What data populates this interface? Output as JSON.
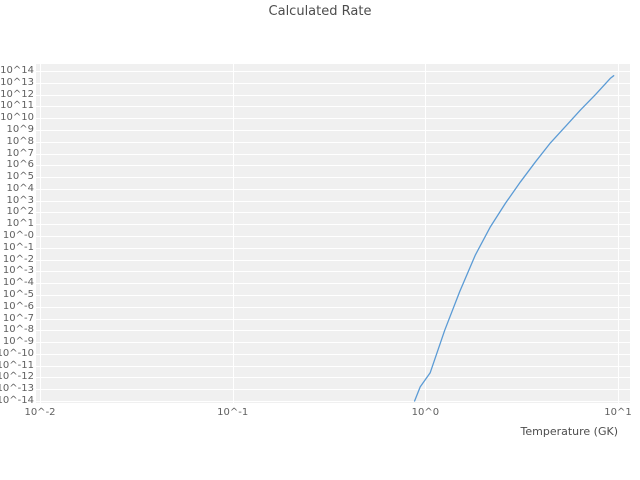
{
  "title": "Calculated Rate",
  "x_axis": {
    "label": "Temperature (GK)",
    "tick_labels": [
      "10^-2",
      "10^-1",
      "10^0",
      "10^1"
    ],
    "tick_exponents": [
      -2,
      -1,
      0,
      1
    ]
  },
  "y_axis": {
    "tick_labels": [
      "10^14",
      "10^13",
      "10^12",
      "10^11",
      "10^10",
      "10^9",
      "10^8",
      "10^7",
      "10^6",
      "10^5",
      "10^4",
      "10^3",
      "10^2",
      "10^1",
      "10^-0",
      "10^-1",
      "10^-2",
      "10^-3",
      "10^-4",
      "10^-5",
      "10^-6",
      "10^-7",
      "10^-8",
      "10^-9",
      "10^-10",
      "10^-11",
      "10^-12",
      "10^-13",
      "10^-14"
    ],
    "tick_exponents": [
      14,
      13,
      12,
      11,
      10,
      9,
      8,
      7,
      6,
      5,
      4,
      3,
      2,
      1,
      0,
      -1,
      -2,
      -3,
      -4,
      -5,
      -6,
      -7,
      -8,
      -9,
      -10,
      -11,
      -12,
      -13,
      -14
    ]
  },
  "chart_data": {
    "type": "line",
    "title": "Calculated Rate",
    "xlabel": "Temperature (GK)",
    "ylabel": "",
    "x_scale": "log",
    "y_scale": "log",
    "x_range_log10": [
      -2,
      1
    ],
    "y_range_log10": [
      -14,
      14
    ],
    "grid": true,
    "legend_position": "none",
    "plot_background": "#f0f0f0",
    "grid_color": "#ffffff",
    "series": [
      {
        "name": "Calculated Rate",
        "color": "#5b9bd5",
        "x_temperature_gk": [
          0.88,
          0.94,
          1.06,
          1.26,
          1.51,
          1.82,
          2.18,
          2.61,
          3.12,
          3.73,
          4.46,
          5.34,
          6.39,
          7.64,
          9.15,
          9.5
        ],
        "y_log10_rate": [
          -14.0,
          -12.8,
          -11.6,
          -8.0,
          -4.7,
          -1.6,
          0.8,
          2.8,
          4.6,
          6.3,
          7.9,
          9.3,
          10.7,
          12.0,
          13.4,
          13.6
        ]
      }
    ]
  }
}
